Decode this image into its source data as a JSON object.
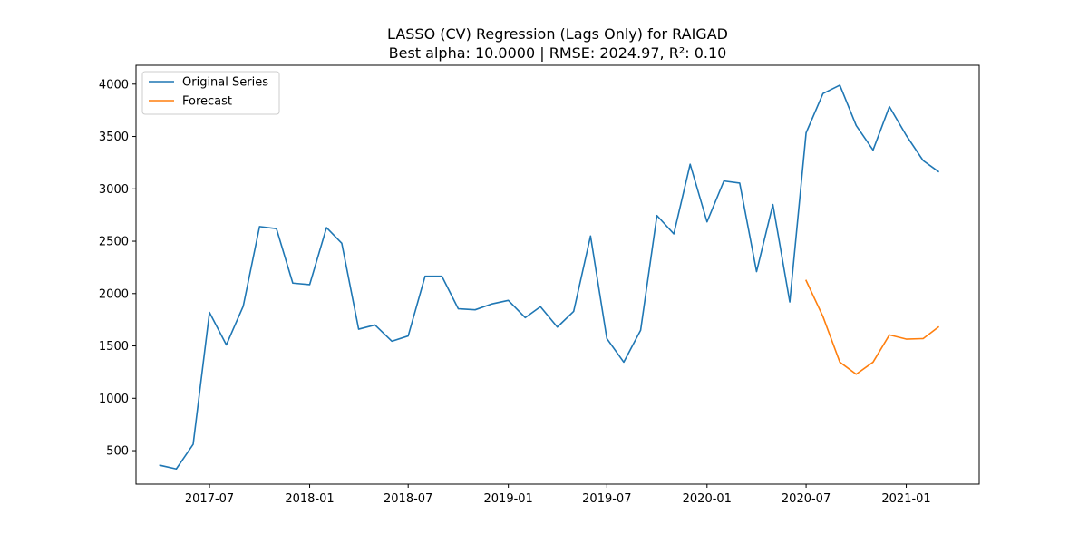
{
  "chart_data": {
    "type": "line",
    "title": "LASSO (CV) Regression (Lags Only) for RAIGAD",
    "subtitle": "Best alpha: 10.0000 | RMSE: 2024.97, R²: 0.10",
    "xlabel": "",
    "ylabel": "",
    "x_axis_type": "date-monthly",
    "xlim": [
      "2017-02-16",
      "2021-05-15"
    ],
    "ylim": [
      180,
      4180
    ],
    "x_ticks": [
      "2017-07",
      "2018-01",
      "2018-07",
      "2019-01",
      "2019-07",
      "2020-01",
      "2020-07",
      "2021-01"
    ],
    "y_ticks": [
      500,
      1000,
      1500,
      2000,
      2500,
      3000,
      3500,
      4000
    ],
    "grid": false,
    "legend_position": "top-left",
    "series": [
      {
        "name": "Original Series",
        "color": "#1f77b4",
        "x": [
          "2017-04",
          "2017-05",
          "2017-06",
          "2017-07",
          "2017-08",
          "2017-09",
          "2017-10",
          "2017-11",
          "2017-12",
          "2018-01",
          "2018-02",
          "2018-03",
          "2018-04",
          "2018-05",
          "2018-06",
          "2018-07",
          "2018-08",
          "2018-09",
          "2018-10",
          "2018-11",
          "2018-12",
          "2019-01",
          "2019-02",
          "2019-03",
          "2019-04",
          "2019-05",
          "2019-06",
          "2019-07",
          "2019-08",
          "2019-09",
          "2019-10",
          "2019-11",
          "2019-12",
          "2020-01",
          "2020-02",
          "2020-03",
          "2020-04",
          "2020-05",
          "2020-06",
          "2020-07",
          "2020-08",
          "2020-09",
          "2020-10",
          "2020-11",
          "2020-12",
          "2021-01",
          "2021-02",
          "2021-03"
        ],
        "values": [
          360,
          325,
          560,
          1820,
          1510,
          1880,
          2640,
          2620,
          2100,
          2085,
          2630,
          2480,
          1660,
          1700,
          1545,
          1595,
          2165,
          2165,
          1855,
          1845,
          1900,
          1935,
          1770,
          1875,
          1680,
          1830,
          2550,
          1570,
          1345,
          1650,
          2745,
          2570,
          3235,
          2685,
          3075,
          3055,
          2210,
          2850,
          1920,
          3535,
          3910,
          3990,
          3605,
          3370,
          3785,
          3510,
          3270,
          3165
        ]
      },
      {
        "name": "Forecast",
        "color": "#ff7f0e",
        "x": [
          "2020-07",
          "2020-08",
          "2020-09",
          "2020-10",
          "2020-11",
          "2020-12",
          "2021-01",
          "2021-02",
          "2021-03"
        ],
        "values": [
          2125,
          1780,
          1345,
          1230,
          1345,
          1605,
          1565,
          1570,
          1680
        ]
      }
    ]
  }
}
